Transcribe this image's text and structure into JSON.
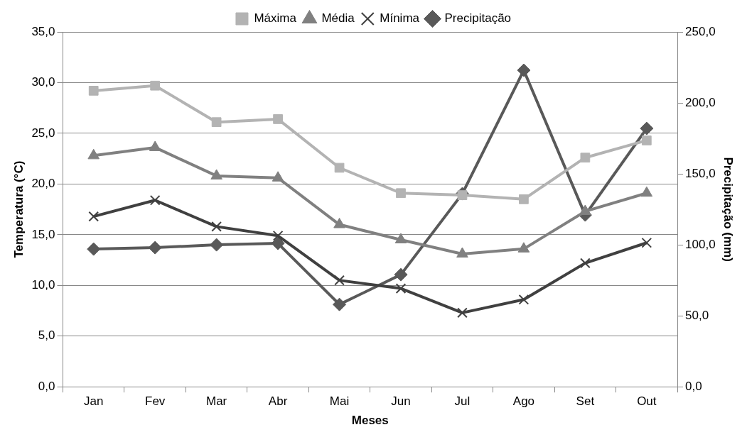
{
  "chart_data": {
    "type": "line",
    "xlabel": "Meses",
    "ylabel": "Temperatura (°C)",
    "y2label": "Precipitação (mm)",
    "categories": [
      "Jan",
      "Fev",
      "Mar",
      "Abr",
      "Mai",
      "Jun",
      "Jul",
      "Ago",
      "Set",
      "Out"
    ],
    "series": [
      {
        "name": "Máxima",
        "color": "#b3b3b3",
        "marker": "square",
        "values": [
          29.2,
          29.7,
          26.1,
          26.4,
          21.6,
          19.1,
          18.9,
          18.5,
          22.6,
          24.3
        ]
      },
      {
        "name": "Média",
        "color": "#808080",
        "marker": "triangle",
        "values": [
          22.8,
          23.6,
          20.8,
          20.6,
          16.0,
          14.5,
          13.1,
          13.6,
          17.3,
          19.1
        ]
      },
      {
        "name": "Mínima",
        "color": "#404040",
        "marker": "cross",
        "values": [
          16.8,
          18.4,
          15.8,
          14.9,
          10.5,
          9.7,
          7.3,
          8.6,
          12.2,
          14.2
        ]
      },
      {
        "name": "Precipitação",
        "color": "#595959",
        "marker": "diamond",
        "axis": "y2",
        "values": [
          97,
          98,
          100,
          101,
          58,
          79,
          136,
          223,
          121,
          182
        ]
      }
    ],
    "ylim": [
      0,
      35
    ],
    "yticks": [
      {
        "value": 0,
        "label": "0,0"
      },
      {
        "value": 5,
        "label": "5,0"
      },
      {
        "value": 10,
        "label": "10,0"
      },
      {
        "value": 15,
        "label": "15,0"
      },
      {
        "value": 20,
        "label": "20,0"
      },
      {
        "value": 25,
        "label": "25,0"
      },
      {
        "value": 30,
        "label": "30,0"
      },
      {
        "value": 35,
        "label": "35,0"
      }
    ],
    "y2lim": [
      0,
      250
    ],
    "y2ticks": [
      {
        "value": 0,
        "label": "0,0"
      },
      {
        "value": 50,
        "label": "50,0"
      },
      {
        "value": 100,
        "label": "100,0"
      },
      {
        "value": 150,
        "label": "150,0"
      },
      {
        "value": 200,
        "label": "200,0"
      },
      {
        "value": 250,
        "label": "250,0"
      }
    ],
    "grid": "y",
    "legend": "top",
    "line_style": "solid"
  }
}
